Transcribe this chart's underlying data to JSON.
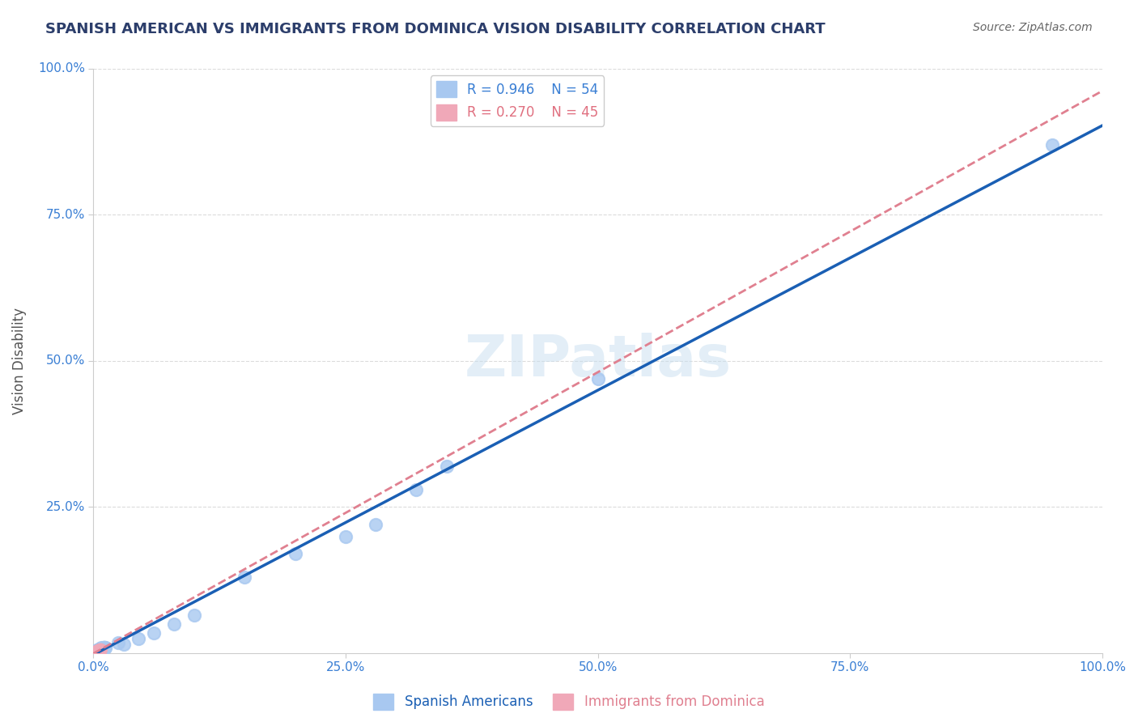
{
  "title": "SPANISH AMERICAN VS IMMIGRANTS FROM DOMINICA VISION DISABILITY CORRELATION CHART",
  "source": "Source: ZipAtlas.com",
  "xlabel": "",
  "ylabel": "Vision Disability",
  "watermark": "ZIPatlas",
  "series1_label": "Spanish Americans",
  "series2_label": "Immigrants from Dominica",
  "series1_color": "#a8c8f0",
  "series2_color": "#f0a8b8",
  "series1_line_color": "#1a5fb4",
  "series2_line_color": "#e08090",
  "series1_R": 0.946,
  "series1_N": 54,
  "series2_R": 0.27,
  "series2_N": 45,
  "legend_R1_color": "#3a7fd4",
  "legend_R2_color": "#e07080",
  "legend_N1_color": "#3a7fd4",
  "legend_N2_color": "#e07080",
  "background_color": "#ffffff",
  "grid_color": "#cccccc",
  "title_color": "#2c3e6b",
  "source_color": "#666666",
  "xlim": [
    0,
    1.0
  ],
  "ylim": [
    0,
    1.0
  ],
  "xtick_labels": [
    "0.0%",
    "25.0%",
    "50.0%",
    "75.0%",
    "100.0%"
  ],
  "xtick_values": [
    0,
    0.25,
    0.5,
    0.75,
    1.0
  ],
  "ytick_labels": [
    "25.0%",
    "50.0%",
    "75.0%",
    "100.0%"
  ],
  "ytick_values": [
    0.25,
    0.5,
    0.75,
    1.0
  ],
  "series1_x": [
    0.005,
    0.008,
    0.006,
    0.003,
    0.007,
    0.009,
    0.004,
    0.01,
    0.012,
    0.006,
    0.005,
    0.007,
    0.008,
    0.003,
    0.006,
    0.01,
    0.004,
    0.011,
    0.009,
    0.007,
    0.005,
    0.006,
    0.008,
    0.004,
    0.009,
    0.007,
    0.01,
    0.006,
    0.005,
    0.008,
    0.012,
    0.007,
    0.006,
    0.009,
    0.005,
    0.011,
    0.01,
    0.008,
    0.006,
    0.007,
    0.03,
    0.025,
    0.045,
    0.06,
    0.08,
    0.1,
    0.15,
    0.2,
    0.25,
    0.28,
    0.32,
    0.35,
    0.5,
    0.95
  ],
  "series1_y": [
    0.005,
    0.007,
    0.004,
    0.003,
    0.008,
    0.006,
    0.005,
    0.009,
    0.01,
    0.006,
    0.004,
    0.007,
    0.008,
    0.003,
    0.006,
    0.009,
    0.005,
    0.01,
    0.008,
    0.007,
    0.004,
    0.006,
    0.009,
    0.004,
    0.008,
    0.007,
    0.009,
    0.005,
    0.004,
    0.007,
    0.01,
    0.006,
    0.007,
    0.008,
    0.005,
    0.01,
    0.009,
    0.007,
    0.005,
    0.006,
    0.015,
    0.018,
    0.025,
    0.035,
    0.05,
    0.065,
    0.13,
    0.17,
    0.2,
    0.22,
    0.28,
    0.32,
    0.47,
    0.87
  ],
  "series2_x": [
    0.003,
    0.005,
    0.004,
    0.006,
    0.002,
    0.007,
    0.005,
    0.004,
    0.006,
    0.003,
    0.005,
    0.004,
    0.007,
    0.003,
    0.006,
    0.005,
    0.004,
    0.006,
    0.003,
    0.005,
    0.007,
    0.004,
    0.006,
    0.003,
    0.005,
    0.004,
    0.006,
    0.003,
    0.005,
    0.007,
    0.004,
    0.006,
    0.003,
    0.005,
    0.004,
    0.006,
    0.003,
    0.005,
    0.007,
    0.004,
    0.006,
    0.003,
    0.005,
    0.004,
    0.006
  ],
  "series2_y": [
    0.004,
    0.006,
    0.003,
    0.005,
    0.002,
    0.007,
    0.004,
    0.003,
    0.006,
    0.003,
    0.005,
    0.004,
    0.006,
    0.002,
    0.005,
    0.004,
    0.003,
    0.006,
    0.002,
    0.005,
    0.006,
    0.003,
    0.005,
    0.002,
    0.004,
    0.003,
    0.005,
    0.002,
    0.004,
    0.006,
    0.003,
    0.005,
    0.002,
    0.004,
    0.003,
    0.005,
    0.002,
    0.004,
    0.006,
    0.003,
    0.005,
    0.002,
    0.004,
    0.003,
    0.005
  ]
}
